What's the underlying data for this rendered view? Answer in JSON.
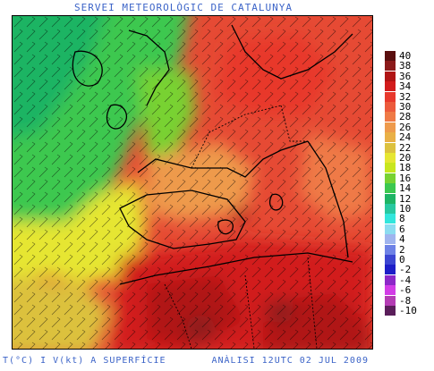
{
  "header": {
    "title": "SERVEI METEOROLÒGIC DE CATALUNYA"
  },
  "footer": {
    "variable_label": "T(°C) I V(kt) A SUPERFÍCIE",
    "analysis_label": "ANÀLISI 12UTC 02 JUL 2009"
  },
  "legend": {
    "items": [
      {
        "label": "40",
        "color": "#5a0f0f"
      },
      {
        "label": "38",
        "color": "#8b1a1a"
      },
      {
        "label": "36",
        "color": "#b01414"
      },
      {
        "label": "34",
        "color": "#d21c1c"
      },
      {
        "label": "32",
        "color": "#e8382c"
      },
      {
        "label": "30",
        "color": "#ec5a3c"
      },
      {
        "label": "28",
        "color": "#ef7a46"
      },
      {
        "label": "26",
        "color": "#ee9a4c"
      },
      {
        "label": "24",
        "color": "#e9b046"
      },
      {
        "label": "22",
        "color": "#dcc13e"
      },
      {
        "label": "20",
        "color": "#e6e632"
      },
      {
        "label": "18",
        "color": "#c8e61e"
      },
      {
        "label": "16",
        "color": "#78d232"
      },
      {
        "label": "14",
        "color": "#3cc850"
      },
      {
        "label": "12",
        "color": "#1eb464"
      },
      {
        "label": "10",
        "color": "#28c8a0"
      },
      {
        "label": "8",
        "color": "#32e6dc"
      },
      {
        "label": "6",
        "color": "#8cdcf0"
      },
      {
        "label": "4",
        "color": "#a0b4ee"
      },
      {
        "label": "2",
        "color": "#6e82e6"
      },
      {
        "label": "0",
        "color": "#3c46d2"
      },
      {
        "label": "-2",
        "color": "#1e1ec8"
      },
      {
        "label": "-4",
        "color": "#8c28c8"
      },
      {
        "label": "-6",
        "color": "#d23ce6"
      },
      {
        "label": "-8",
        "color": "#b43cb4"
      },
      {
        "label": "-10",
        "color": "#5a1e5a"
      }
    ]
  }
}
